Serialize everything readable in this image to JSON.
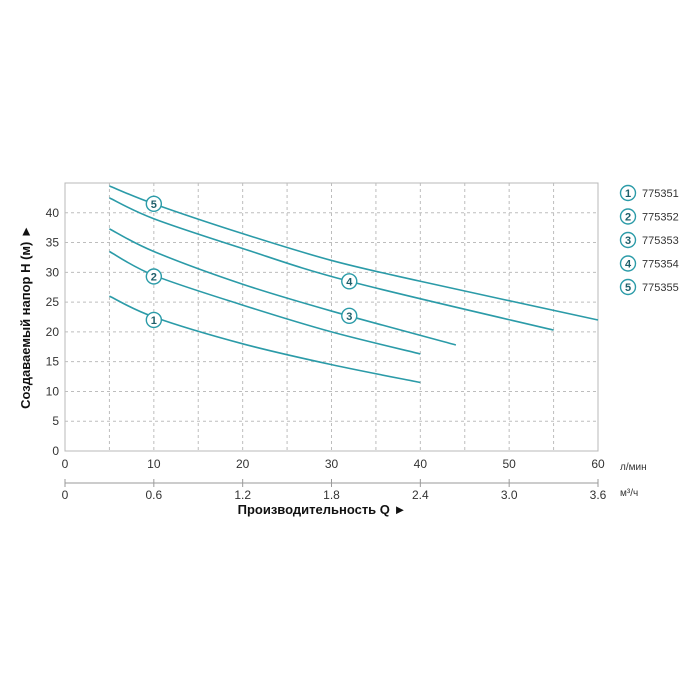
{
  "chart_data": {
    "type": "line",
    "ylabel": "Создаваемый напор Н (м) ►",
    "xlabel": "Производительность Q ►",
    "x_unit": "л/мин",
    "x2_unit": "м³/ч",
    "xlim": [
      0,
      60
    ],
    "ylim": [
      0,
      45
    ],
    "x_ticks": [
      "0",
      "10",
      "20",
      "30",
      "40",
      "50",
      "60"
    ],
    "x2_ticks": [
      "0",
      "0.6",
      "1.2",
      "1.8",
      "2.4",
      "3.0",
      "3.6"
    ],
    "y_ticks": [
      "0",
      "5",
      "10",
      "15",
      "20",
      "25",
      "30",
      "35",
      "40"
    ],
    "grid": true,
    "line_color": "#2b9ba8",
    "legend_position": "right",
    "series": [
      {
        "marker": "1",
        "name": "775351",
        "x": [
          5,
          10,
          20,
          30,
          40
        ],
        "y": [
          26,
          22.5,
          18,
          14.5,
          11.5
        ],
        "label_at": [
          10,
          22
        ]
      },
      {
        "marker": "2",
        "name": "775352",
        "x": [
          5,
          10,
          20,
          30,
          40
        ],
        "y": [
          33.5,
          29.5,
          24.5,
          20,
          16.3
        ],
        "label_at": [
          10,
          29.3
        ]
      },
      {
        "marker": "3",
        "name": "775353",
        "x": [
          5,
          10,
          20,
          30,
          44
        ],
        "y": [
          37.3,
          33.5,
          28,
          23.5,
          17.8
        ],
        "label_at": [
          32,
          22.7
        ]
      },
      {
        "marker": "4",
        "name": "775354",
        "x": [
          5,
          10,
          20,
          32,
          55
        ],
        "y": [
          42.5,
          39,
          34,
          28.5,
          20.3
        ],
        "label_at": [
          32,
          28.5
        ]
      },
      {
        "marker": "5",
        "name": "775355",
        "x": [
          5,
          10,
          20,
          30,
          40,
          60
        ],
        "y": [
          44.5,
          41.5,
          36.5,
          32,
          28.5,
          22
        ],
        "label_at": [
          10,
          41.5
        ]
      }
    ]
  }
}
